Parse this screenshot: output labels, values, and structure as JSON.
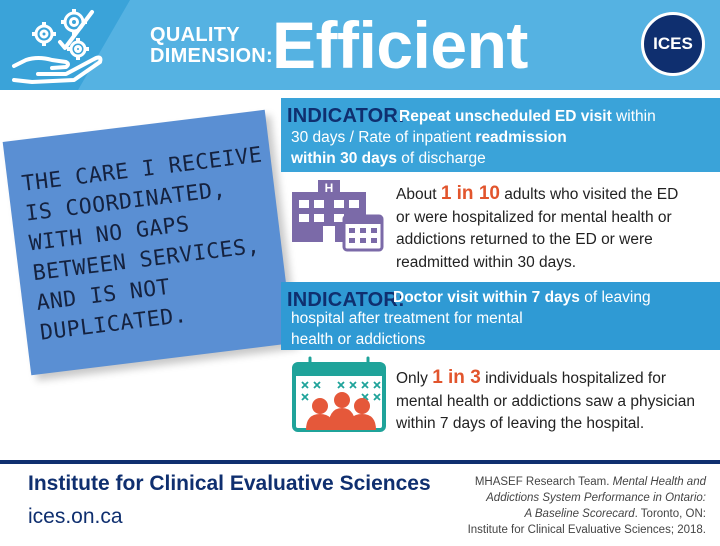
{
  "header": {
    "quality_line1": "QUALITY",
    "quality_line2": "DIMENSION:",
    "title": "Efficient",
    "logo_text": "ICES"
  },
  "note": {
    "lines": [
      "THE CARE I RECEIVE",
      "IS COORDINATED,",
      "WITH NO GAPS",
      "BETWEEN SERVICES,",
      "AND IS NOT",
      "DUPLICATED."
    ]
  },
  "indicator1": {
    "label": "INDICATOR:",
    "l1_bold": "Repeat unscheduled ED visit",
    "l1_rest": " within",
    "l2_a": "30 days / Rate of inpatient ",
    "l2_bold": "readmission",
    "l3_bold": "within 30 days",
    "l3_rest": " of discharge"
  },
  "finding1": {
    "pre": "About ",
    "highlight": "1 in 10",
    "l1_rest": " adults who visited the ED",
    "l2": "or were hospitalized for mental health or",
    "l3": "addictions returned to the ED or were",
    "l4": "readmitted within 30 days."
  },
  "indicator2": {
    "label": "INDICATOR:",
    "l1_bold": "Doctor visit within 7 days",
    "l1_rest": " of leaving",
    "l2": "hospital after treatment for mental",
    "l3": "health or addictions"
  },
  "finding2": {
    "pre": "Only ",
    "highlight": "1 in 3",
    "l1_rest": " individuals hospitalized for",
    "l2": "mental health or addictions saw a physician",
    "l3": "within 7 days of leaving the hospital."
  },
  "footer": {
    "institute": "Institute for Clinical Evaluative Sciences",
    "website": "ices.on.ca",
    "cite_l1_a": "MHASEF Research Team. ",
    "cite_l1_b": "Mental Health and",
    "cite_l2": "Addictions System Performance in Ontario:",
    "cite_l3_a": "A Baseline Scorecard",
    "cite_l3_b": ". Toronto, ON:",
    "cite_l4": "Institute for Clinical Evaluative Sciences; 2018."
  },
  "colors": {
    "header_blue": "#3aa3d9",
    "navy": "#0f2f6f",
    "note_blue": "#5a8fd3",
    "highlight_orange": "#e2552d",
    "hospital_purple": "#7b6aa8",
    "calendar_teal": "#1fa39a",
    "people_orange": "#e5583a"
  },
  "icons": [
    "hand-gears-icon",
    "hospital-calendar-icon",
    "calendar-people-icon"
  ]
}
